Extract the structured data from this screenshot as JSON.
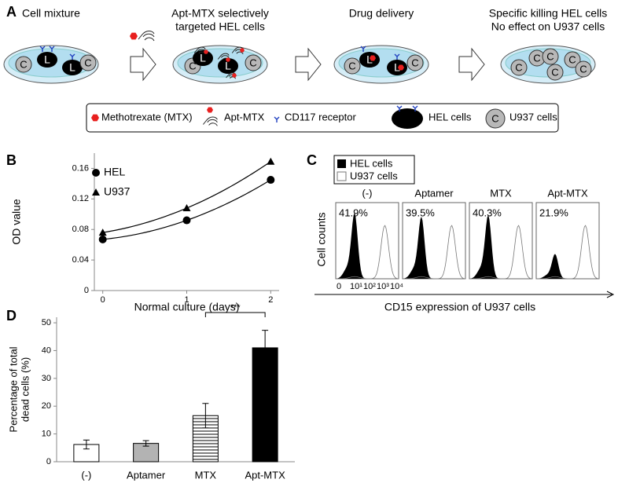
{
  "diagram": {
    "panel_label": "A",
    "steps": [
      [
        "Cell mixture"
      ],
      [
        "Apt-MTX selectively",
        "targeted  HEL cells"
      ],
      [
        "Drug delivery"
      ],
      [
        "Specific killing HEL cells",
        "No effect on U937 cells"
      ]
    ],
    "hel_letter": "L",
    "u937_letter": "C",
    "legend": [
      "Methotrexate (MTX)",
      "Apt-MTX",
      "CD117 receptor",
      "HEL cells",
      "U937 cells"
    ]
  },
  "flow": {
    "panel_label": "C",
    "legend": [
      "HEL cells",
      "U937 cells"
    ],
    "panels": [
      "(-)",
      "Aptamer",
      "MTX",
      "Apt-MTX"
    ],
    "percentages": [
      "41.9%",
      "39.5%",
      "40.3%",
      "21.9%"
    ],
    "x_ticks": [
      "0",
      "10¹",
      "10²",
      "10³",
      "10⁴"
    ],
    "ylabel": "Cell counts",
    "xlabel": "CD15 expression of U937 cells"
  },
  "chart_data": [
    {
      "type": "scatter",
      "panel_label": "B",
      "x": [
        0,
        1,
        2
      ],
      "series": [
        {
          "name": "HEL",
          "marker": "circle",
          "color": "#000000",
          "values": [
            0.067,
            0.092,
            0.145
          ]
        },
        {
          "name": "U937",
          "marker": "triangle",
          "color": "#000000",
          "values": [
            0.076,
            0.108,
            0.169
          ]
        }
      ],
      "xlim": [
        -0.1,
        2.1
      ],
      "xticks": [
        0,
        1,
        2
      ],
      "ylim": [
        0,
        0.18
      ],
      "yticks": [
        0,
        0.04,
        0.08,
        0.12,
        0.16
      ],
      "xlabel": "Normal culture (days)",
      "ylabel": "OD value",
      "trendline": "quadratic",
      "legend": "top-left"
    },
    {
      "type": "bar",
      "panel_label": "D",
      "categories": [
        "(-)",
        "Aptamer",
        "MTX",
        "Apt-MTX"
      ],
      "values": [
        6.2,
        6.6,
        16.6,
        41
      ],
      "errors": [
        1.6,
        1.0,
        4.4,
        6.3
      ],
      "fills": [
        "#ffffff",
        "#b3b3b3",
        "horizontal-stripes",
        "#000000"
      ],
      "ylim": [
        0,
        52
      ],
      "yticks": [
        0,
        10,
        20,
        30,
        40,
        50
      ],
      "ylabel": [
        "Percentage of total",
        "dead cells (%)"
      ],
      "annotation": {
        "text": "***",
        "between": [
          2,
          3
        ]
      }
    }
  ]
}
